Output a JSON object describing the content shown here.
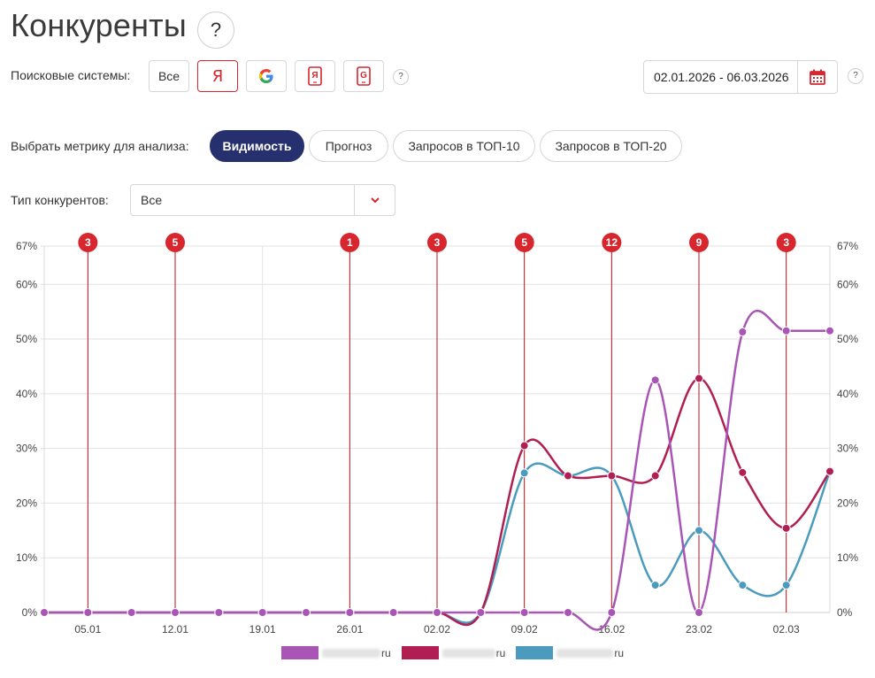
{
  "header": {
    "title": "Конкуренты",
    "help": "?"
  },
  "search_engines": {
    "label": "Поисковые системы:",
    "buttons": [
      {
        "label": "Все",
        "icon": "text"
      },
      {
        "label": "Я",
        "icon": "yandex-icon",
        "active": true
      },
      {
        "label": "G",
        "icon": "google-icon"
      },
      {
        "label": "Я",
        "icon": "yandex-mobile-icon"
      },
      {
        "label": "G",
        "icon": "google-mobile-icon"
      }
    ],
    "help": "?"
  },
  "date_range": {
    "value": "02.01.2026 - 06.03.2026",
    "help": "?"
  },
  "metrics": {
    "label": "Выбрать метрику для анализа:",
    "options": [
      "Видимость",
      "Прогноз",
      "Запросов в ТОП-10",
      "Запросов в ТОП-20"
    ],
    "selected": "Видимость"
  },
  "competitor_type": {
    "label": "Тип конкурентов:",
    "value": "Все"
  },
  "colors": {
    "accent_red": "#d7262e",
    "navy": "#26306e",
    "series_purple": "#a855b5",
    "series_crimson": "#b01e52",
    "series_blue": "#4a9bbd"
  },
  "chart_data": {
    "type": "line",
    "x_dates": [
      "02.01",
      "05.01",
      "08.01",
      "12.01",
      "15.01",
      "19.01",
      "22.01",
      "26.01",
      "29.01",
      "02.02",
      "05.02",
      "09.02",
      "12.02",
      "16.02",
      "19.02",
      "23.02",
      "26.02",
      "02.03",
      "05.03"
    ],
    "x_tick_labels": [
      "05.01",
      "12.01",
      "19.01",
      "26.01",
      "02.02",
      "09.02",
      "16.02",
      "23.02",
      "02.03"
    ],
    "y_ticks": [
      "0%",
      "10%",
      "20%",
      "30%",
      "40%",
      "50%",
      "60%",
      "67%"
    ],
    "ylim": [
      0,
      67
    ],
    "series": [
      {
        "name": "ru",
        "color": "#a855b5",
        "values": [
          0,
          0,
          0,
          0,
          0,
          0,
          0,
          0,
          0,
          0,
          0,
          0,
          0,
          0,
          42.5,
          0,
          51.3,
          51.5,
          51.5
        ]
      },
      {
        "name": "ru",
        "color": "#b01e52",
        "values": [
          0,
          0,
          0,
          0,
          0,
          0,
          0,
          0,
          0,
          0,
          0,
          30.5,
          25,
          25,
          25,
          42.8,
          25.6,
          15.4,
          25.8
        ]
      },
      {
        "name": "ru",
        "color": "#4a9bbd",
        "values": [
          0,
          0,
          0,
          0,
          0,
          0,
          0,
          0,
          0,
          0,
          0,
          25.5,
          25,
          25,
          5,
          15,
          5,
          5,
          25.8
        ]
      }
    ],
    "annotations": [
      {
        "date": "05.01",
        "count": "3"
      },
      {
        "date": "12.01",
        "count": "5"
      },
      {
        "date": "26.01",
        "count": "1"
      },
      {
        "date": "02.02",
        "count": "3"
      },
      {
        "date": "09.02",
        "count": "5"
      },
      {
        "date": "16.02",
        "count": "12"
      },
      {
        "date": "23.02",
        "count": "9"
      },
      {
        "date": "02.03",
        "count": "3"
      }
    ]
  }
}
